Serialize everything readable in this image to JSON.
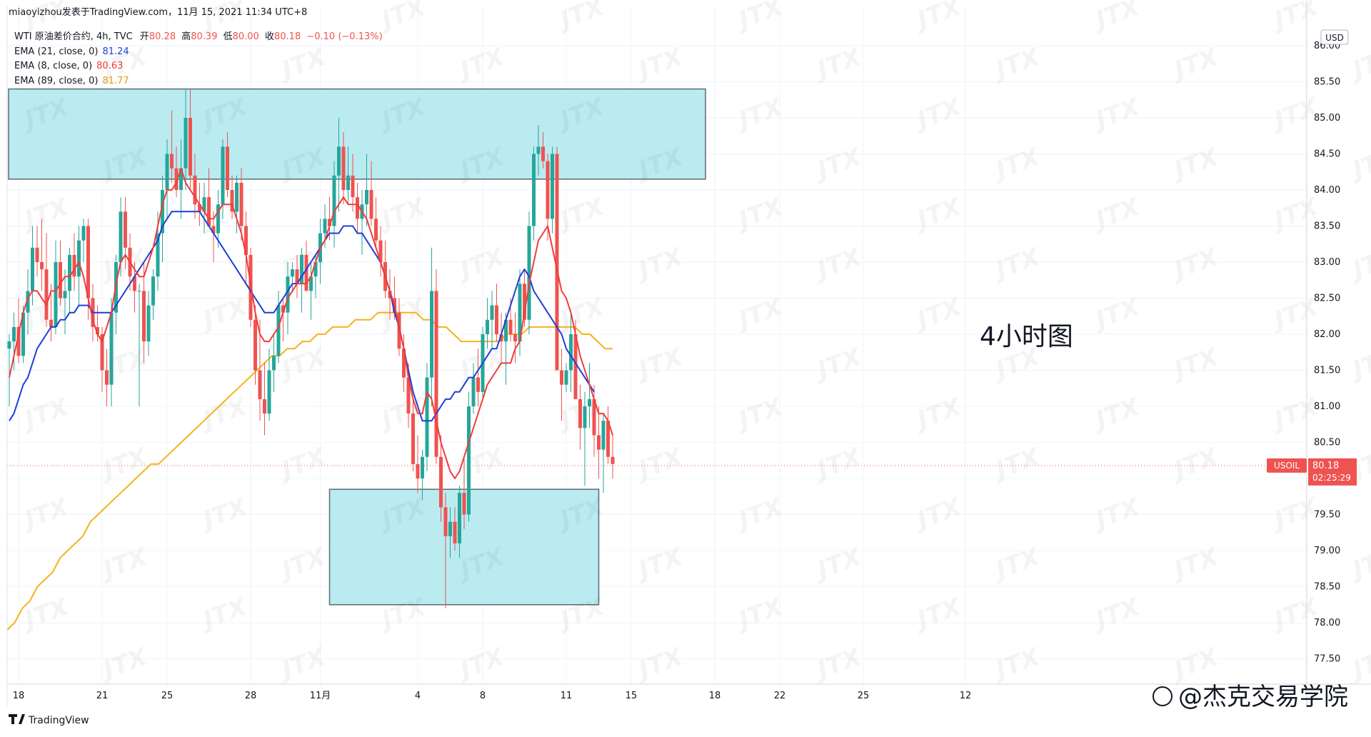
{
  "header": {
    "attribution": "miaoyizhou发表于TradingView.com，11月 15, 2021 11:34 UTC+8",
    "symbol_line": {
      "name": "WTI 原油差价合约, 4h, TVC",
      "open_label": "开",
      "open": "80.28",
      "high_label": "高",
      "high": "80.39",
      "low_label": "低",
      "low": "80.00",
      "close_label": "收",
      "close": "80.18",
      "change": "−0.10 (−0.13%)"
    },
    "ema_lines": [
      {
        "label": "EMA (21, close, 0)",
        "value": "81.24",
        "color": "#1e3fd6"
      },
      {
        "label": "EMA (8, close, 0)",
        "value": "80.63",
        "color": "#f03c3c"
      },
      {
        "label": "EMA (89, close, 0)",
        "value": "81.77",
        "color": "#f5b318"
      }
    ]
  },
  "annotation": "4小时图",
  "currency_label": "USD",
  "price_tag": {
    "symbol": "USOIL",
    "price": "80.18",
    "countdown": "02:25:29"
  },
  "branding": {
    "logo_text": "TradingView",
    "watermark": "JTX",
    "source": "@杰克交易学院"
  },
  "colors": {
    "up": "#26a69a",
    "down": "#ef5350",
    "zone": "#b9ebf1",
    "ema21": "#1e3fd6",
    "ema8": "#f03c3c",
    "ema89": "#f5b318"
  },
  "chart_data": {
    "type": "candlestick",
    "timeframe": "4h",
    "y_axis": {
      "range": [
        77.3,
        86.2
      ],
      "ticks": [
        "86.00",
        "85.50",
        "85.00",
        "84.50",
        "84.00",
        "83.50",
        "83.00",
        "82.50",
        "82.00",
        "81.50",
        "81.00",
        "80.50",
        "80.00",
        "79.50",
        "79.00",
        "78.50",
        "78.00",
        "77.50"
      ]
    },
    "x_axis": {
      "ticks": [
        {
          "label": "18",
          "bar": 2
        },
        {
          "label": "21",
          "bar": 20
        },
        {
          "label": "25",
          "bar": 34
        },
        {
          "label": "28",
          "bar": 52
        },
        {
          "label": "11月",
          "bar": 67
        },
        {
          "label": "4",
          "bar": 88
        },
        {
          "label": "8",
          "bar": 102
        },
        {
          "label": "11",
          "bar": 120
        },
        {
          "label": "15",
          "bar": 134
        },
        {
          "label": "18",
          "bar": 152
        },
        {
          "label": "22",
          "bar": 166
        },
        {
          "label": "25",
          "bar": 184
        },
        {
          "label": "12",
          "bar": 206
        }
      ]
    },
    "candles": [
      [
        81.8,
        82.0,
        81.0,
        81.9
      ],
      [
        81.9,
        82.3,
        81.5,
        82.1
      ],
      [
        82.1,
        82.5,
        81.6,
        81.7
      ],
      [
        81.7,
        82.4,
        81.6,
        82.3
      ],
      [
        82.3,
        82.9,
        82.0,
        82.6
      ],
      [
        82.6,
        83.5,
        82.4,
        83.2
      ],
      [
        83.2,
        83.5,
        82.8,
        83.0
      ],
      [
        83.0,
        83.6,
        82.6,
        82.9
      ],
      [
        82.9,
        83.4,
        82.1,
        82.2
      ],
      [
        82.2,
        82.7,
        81.9,
        82.1
      ],
      [
        82.1,
        83.3,
        82.0,
        83.0
      ],
      [
        83.0,
        83.3,
        82.4,
        82.5
      ],
      [
        82.5,
        82.9,
        82.0,
        82.6
      ],
      [
        82.6,
        83.2,
        82.3,
        83.1
      ],
      [
        83.1,
        83.4,
        82.6,
        82.8
      ],
      [
        82.8,
        83.5,
        82.4,
        83.3
      ],
      [
        83.3,
        83.6,
        83.0,
        83.5
      ],
      [
        83.5,
        83.6,
        82.2,
        82.5
      ],
      [
        82.5,
        82.7,
        81.9,
        82.1
      ],
      [
        82.1,
        82.4,
        81.9,
        82.0
      ],
      [
        82.0,
        82.1,
        81.2,
        81.5
      ],
      [
        81.5,
        81.8,
        81.0,
        81.3
      ],
      [
        81.3,
        82.5,
        81.0,
        82.3
      ],
      [
        82.3,
        83.1,
        82.0,
        83.0
      ],
      [
        83.0,
        83.9,
        82.8,
        83.7
      ],
      [
        83.7,
        83.9,
        82.9,
        83.2
      ],
      [
        83.2,
        83.4,
        82.6,
        82.8
      ],
      [
        82.8,
        83.0,
        82.3,
        82.6
      ],
      [
        82.6,
        82.7,
        81.0,
        82.6
      ],
      [
        82.6,
        83.0,
        81.6,
        81.9
      ],
      [
        81.9,
        82.6,
        81.7,
        82.4
      ],
      [
        82.4,
        82.9,
        82.2,
        82.8
      ],
      [
        82.8,
        83.7,
        82.6,
        83.4
      ],
      [
        83.4,
        84.2,
        83.0,
        84.0
      ],
      [
        84.0,
        84.7,
        83.6,
        84.5
      ],
      [
        84.5,
        85.1,
        84.1,
        84.3
      ],
      [
        84.3,
        84.6,
        83.9,
        84.0
      ],
      [
        84.0,
        84.7,
        83.6,
        84.3
      ],
      [
        84.3,
        85.4,
        84.0,
        85.0
      ],
      [
        85.0,
        85.4,
        84.0,
        84.2
      ],
      [
        84.2,
        84.5,
        83.6,
        83.8
      ],
      [
        83.8,
        84.1,
        83.5,
        83.7
      ],
      [
        83.7,
        84.1,
        83.4,
        83.9
      ],
      [
        83.9,
        84.3,
        83.5,
        83.5
      ],
      [
        83.5,
        83.7,
        83.0,
        83.4
      ],
      [
        83.4,
        84.0,
        83.2,
        83.8
      ],
      [
        83.8,
        84.7,
        83.6,
        84.6
      ],
      [
        84.6,
        84.8,
        83.9,
        84.0
      ],
      [
        84.0,
        84.2,
        83.6,
        83.7
      ],
      [
        83.7,
        84.2,
        83.4,
        84.1
      ],
      [
        84.1,
        84.3,
        83.3,
        83.5
      ],
      [
        83.5,
        83.7,
        82.7,
        83.1
      ],
      [
        83.1,
        83.2,
        82.1,
        82.2
      ],
      [
        82.2,
        82.4,
        81.3,
        81.5
      ],
      [
        81.5,
        82.2,
        80.8,
        81.1
      ],
      [
        81.1,
        81.6,
        80.6,
        80.9
      ],
      [
        80.9,
        81.8,
        80.8,
        81.5
      ],
      [
        81.5,
        82.0,
        81.2,
        81.7
      ],
      [
        81.7,
        82.6,
        81.6,
        82.4
      ],
      [
        82.4,
        82.5,
        81.9,
        82.3
      ],
      [
        82.3,
        83.0,
        82.0,
        82.8
      ],
      [
        82.8,
        83.0,
        82.6,
        82.9
      ],
      [
        82.9,
        83.1,
        82.5,
        82.7
      ],
      [
        82.7,
        83.2,
        82.3,
        83.1
      ],
      [
        83.1,
        83.3,
        82.6,
        82.6
      ],
      [
        82.6,
        83.0,
        82.2,
        82.8
      ],
      [
        82.8,
        83.1,
        82.5,
        83.0
      ],
      [
        83.0,
        83.6,
        82.7,
        83.4
      ],
      [
        83.4,
        83.8,
        83.2,
        83.6
      ],
      [
        83.6,
        83.9,
        83.3,
        83.5
      ],
      [
        83.5,
        84.4,
        83.2,
        84.2
      ],
      [
        84.2,
        85.0,
        83.7,
        84.6
      ],
      [
        84.6,
        84.8,
        83.8,
        84.0
      ],
      [
        84.0,
        84.6,
        83.8,
        84.2
      ],
      [
        84.2,
        84.5,
        83.7,
        83.9
      ],
      [
        83.9,
        84.1,
        83.4,
        83.6
      ],
      [
        83.6,
        84.0,
        83.1,
        83.8
      ],
      [
        83.8,
        84.5,
        83.5,
        84.0
      ],
      [
        84.0,
        84.4,
        83.5,
        83.6
      ],
      [
        83.6,
        83.9,
        83.2,
        83.3
      ],
      [
        83.3,
        83.5,
        82.8,
        83.0
      ],
      [
        83.0,
        83.3,
        82.5,
        82.6
      ],
      [
        82.6,
        82.9,
        82.2,
        82.5
      ],
      [
        82.5,
        82.8,
        82.2,
        82.3
      ],
      [
        82.3,
        82.5,
        81.7,
        81.8
      ],
      [
        81.8,
        82.0,
        81.2,
        81.4
      ],
      [
        81.4,
        81.6,
        80.7,
        80.9
      ],
      [
        80.9,
        81.1,
        80.1,
        80.2
      ],
      [
        80.2,
        80.6,
        79.8,
        80.0
      ],
      [
        80.0,
        80.4,
        79.7,
        80.3
      ],
      [
        80.3,
        81.6,
        80.1,
        81.4
      ],
      [
        81.4,
        83.2,
        81.0,
        82.6
      ],
      [
        82.6,
        82.9,
        80.2,
        80.3
      ],
      [
        80.3,
        80.6,
        79.4,
        79.6
      ],
      [
        79.6,
        79.8,
        78.2,
        79.2
      ],
      [
        79.2,
        79.6,
        78.9,
        79.4
      ],
      [
        79.4,
        79.6,
        79.0,
        79.1
      ],
      [
        79.1,
        79.9,
        78.9,
        79.8
      ],
      [
        79.8,
        80.3,
        79.3,
        79.5
      ],
      [
        79.5,
        81.2,
        79.4,
        81.0
      ],
      [
        81.0,
        81.6,
        80.9,
        81.4
      ],
      [
        81.4,
        81.8,
        81.0,
        81.2
      ],
      [
        81.2,
        82.1,
        81.1,
        82.0
      ],
      [
        82.0,
        82.5,
        81.8,
        82.2
      ],
      [
        82.2,
        82.6,
        81.8,
        82.4
      ],
      [
        82.4,
        82.7,
        81.9,
        82.0
      ],
      [
        82.0,
        82.3,
        81.6,
        81.9
      ],
      [
        81.9,
        82.3,
        81.3,
        82.2
      ],
      [
        82.2,
        82.5,
        81.9,
        82.0
      ],
      [
        82.0,
        82.3,
        81.6,
        81.9
      ],
      [
        81.9,
        82.9,
        81.7,
        82.7
      ],
      [
        82.7,
        82.9,
        82.1,
        82.2
      ],
      [
        82.2,
        83.7,
        82.0,
        83.5
      ],
      [
        83.5,
        84.6,
        83.3,
        84.5
      ],
      [
        84.5,
        84.9,
        84.2,
        84.6
      ],
      [
        84.6,
        84.8,
        84.3,
        84.4
      ],
      [
        84.4,
        84.5,
        83.3,
        83.6
      ],
      [
        83.6,
        84.6,
        83.4,
        84.5
      ],
      [
        84.5,
        84.6,
        81.5,
        81.5
      ],
      [
        81.5,
        81.8,
        80.8,
        81.3
      ],
      [
        81.3,
        81.6,
        81.2,
        81.5
      ],
      [
        81.5,
        82.3,
        81.2,
        82.0
      ],
      [
        82.0,
        82.2,
        81.1,
        81.1
      ],
      [
        81.1,
        81.3,
        80.4,
        80.7
      ],
      [
        80.7,
        81.2,
        79.9,
        81.0
      ],
      [
        81.0,
        81.6,
        80.7,
        81.1
      ],
      [
        81.1,
        81.3,
        80.3,
        80.6
      ],
      [
        80.6,
        81.0,
        80.0,
        80.4
      ],
      [
        80.4,
        80.9,
        79.8,
        80.8
      ],
      [
        80.8,
        81.0,
        80.2,
        80.3
      ],
      [
        80.3,
        80.6,
        80.0,
        80.2
      ]
    ],
    "ema8": [
      81.4,
      81.7,
      82.0,
      82.3,
      82.5,
      82.6,
      82.6,
      82.5,
      82.4,
      82.6,
      82.6,
      82.7,
      82.8,
      82.8,
      82.9,
      83.0,
      82.8,
      82.5,
      82.2,
      82.0,
      81.9,
      82.1,
      82.3,
      82.7,
      83.0,
      83.1,
      83.0,
      82.9,
      82.8,
      82.8,
      83.0,
      83.2,
      83.5,
      83.8,
      84.0,
      84.0,
      84.1,
      84.3,
      84.1,
      84.0,
      83.9,
      83.8,
      83.7,
      83.6,
      83.6,
      83.7,
      83.8,
      83.8,
      83.8,
      83.6,
      83.4,
      83.1,
      82.7,
      82.3,
      82.0,
      81.9,
      81.9,
      82.0,
      82.1,
      82.3,
      82.5,
      82.6,
      82.7,
      82.7,
      82.7,
      82.8,
      83.0,
      83.2,
      83.3,
      83.5,
      83.7,
      83.8,
      83.9,
      83.8,
      83.8,
      83.8,
      83.7,
      83.6,
      83.4,
      83.2,
      83.0,
      82.8,
      82.6,
      82.4,
      82.1,
      81.8,
      81.4,
      81.1,
      80.9,
      80.9,
      81.2,
      81.1,
      80.8,
      80.5,
      80.3,
      80.1,
      80.0,
      80.1,
      80.3,
      80.5,
      80.7,
      80.9,
      81.1,
      81.3,
      81.4,
      81.5,
      81.6,
      81.6,
      81.6,
      81.8,
      81.9,
      82.3,
      82.7,
      83.0,
      83.3,
      83.4,
      83.5,
      83.2,
      82.9,
      82.6,
      82.5,
      82.3,
      82.0,
      81.7,
      81.5,
      81.3,
      81.1,
      80.9,
      80.9,
      80.8,
      80.6
    ],
    "ema21": [
      80.8,
      80.9,
      81.1,
      81.3,
      81.4,
      81.6,
      81.8,
      81.9,
      82.0,
      82.1,
      82.1,
      82.2,
      82.2,
      82.3,
      82.3,
      82.4,
      82.4,
      82.4,
      82.3,
      82.3,
      82.3,
      82.3,
      82.3,
      82.4,
      82.5,
      82.6,
      82.7,
      82.8,
      82.9,
      83.0,
      83.1,
      83.2,
      83.3,
      83.5,
      83.6,
      83.7,
      83.7,
      83.7,
      83.7,
      83.7,
      83.7,
      83.7,
      83.6,
      83.5,
      83.4,
      83.3,
      83.2,
      83.1,
      83.0,
      82.9,
      82.8,
      82.7,
      82.6,
      82.5,
      82.4,
      82.3,
      82.3,
      82.3,
      82.4,
      82.5,
      82.6,
      82.7,
      82.7,
      82.8,
      82.9,
      83.0,
      83.1,
      83.2,
      83.3,
      83.4,
      83.4,
      83.4,
      83.5,
      83.5,
      83.5,
      83.4,
      83.4,
      83.3,
      83.2,
      83.1,
      83.0,
      82.8,
      82.6,
      82.3,
      82.1,
      81.8,
      81.5,
      81.2,
      81.0,
      80.8,
      80.8,
      80.8,
      80.9,
      81.0,
      81.1,
      81.1,
      81.2,
      81.2,
      81.3,
      81.4,
      81.4,
      81.5,
      81.6,
      81.7,
      81.8,
      81.8,
      82.0,
      82.2,
      82.4,
      82.6,
      82.8,
      82.9,
      82.8,
      82.6,
      82.5,
      82.4,
      82.3,
      82.2,
      82.1,
      82.0,
      81.8,
      81.7,
      81.6,
      81.5,
      81.4,
      81.3,
      81.2
    ],
    "ema89": [
      77.9,
      78.0,
      78.2,
      78.3,
      78.5,
      78.6,
      78.7,
      78.9,
      79.0,
      79.1,
      79.2,
      79.4,
      79.5,
      79.6,
      79.7,
      79.8,
      79.9,
      80.0,
      80.1,
      80.2,
      80.2,
      80.3,
      80.4,
      80.5,
      80.6,
      80.7,
      80.8,
      80.9,
      81.0,
      81.1,
      81.2,
      81.3,
      81.4,
      81.5,
      81.6,
      81.7,
      81.7,
      81.8,
      81.8,
      81.9,
      81.9,
      82.0,
      82.0,
      82.1,
      82.1,
      82.1,
      82.2,
      82.2,
      82.2,
      82.3,
      82.3,
      82.3,
      82.3,
      82.3,
      82.3,
      82.2,
      82.2,
      82.1,
      82.1,
      82.0,
      81.9,
      81.9,
      81.9,
      81.9,
      81.9,
      81.9,
      82.0,
      82.0,
      82.0,
      82.1,
      82.1,
      82.1,
      82.1,
      82.1,
      82.1,
      82.1,
      82.0,
      82.0,
      81.9,
      81.8,
      81.8
    ],
    "ema89_start_bar": 0,
    "zones": [
      {
        "name": "resistance",
        "from_bar": 0,
        "to_bar": 150,
        "low": 84.15,
        "high": 85.4
      },
      {
        "name": "support",
        "from_bar": 69,
        "to_bar": 127,
        "low": 78.25,
        "high": 79.85
      }
    ],
    "last_price_line": 80.18
  }
}
